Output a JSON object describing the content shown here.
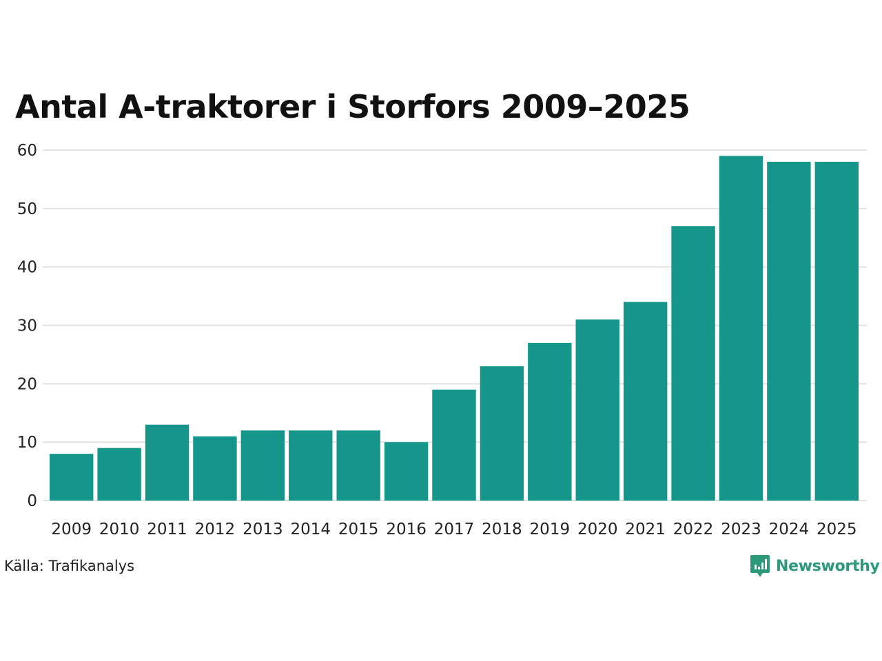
{
  "colors": {
    "bar": "#16968a",
    "grid": "#e2e2e2",
    "text": "#222222",
    "brand": "#2c9a78"
  },
  "source": "Källa: Trafikanalys",
  "brand": {
    "name": "Newsworthy",
    "icon": "bar-chart-speech-bubble-icon"
  },
  "chart_data": {
    "type": "bar",
    "title": "Antal A-traktorer i Storfors 2009–2025",
    "xlabel": "",
    "ylabel": "",
    "ylim": [
      0,
      60
    ],
    "yticks": [
      0,
      10,
      20,
      30,
      40,
      50,
      60
    ],
    "grid": true,
    "categories": [
      "2009",
      "2010",
      "2011",
      "2012",
      "2013",
      "2014",
      "2015",
      "2016",
      "2017",
      "2018",
      "2019",
      "2020",
      "2021",
      "2022",
      "2023",
      "2024",
      "2025"
    ],
    "values": [
      8,
      9,
      13,
      11,
      12,
      12,
      12,
      10,
      19,
      23,
      27,
      31,
      34,
      47,
      59,
      58,
      58
    ]
  }
}
